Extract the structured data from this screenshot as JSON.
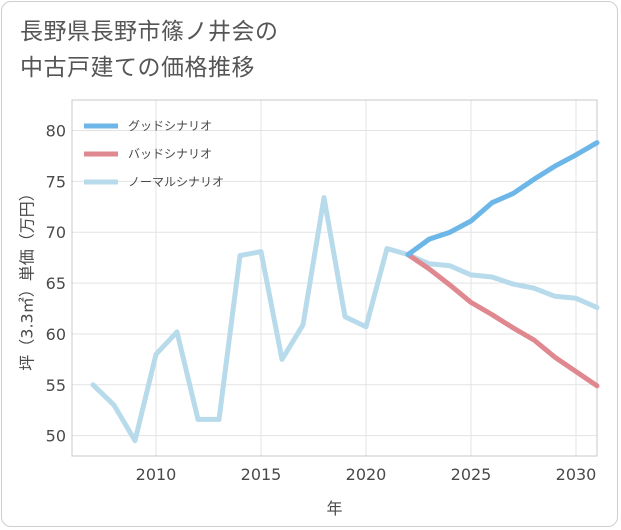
{
  "title": {
    "line1": "長野県長野市篠ノ井会の",
    "line2": "中古戸建ての価格推移"
  },
  "chart_data": {
    "type": "line",
    "xlabel": "年",
    "ylabel": "坪（3.3㎡）単価（万円）",
    "xlim": [
      2006,
      2031
    ],
    "ylim": [
      48,
      83
    ],
    "xticks": [
      2010,
      2015,
      2020,
      2025,
      2030
    ],
    "yticks": [
      50,
      55,
      60,
      65,
      70,
      75,
      80
    ],
    "grid": true,
    "legend_position": "top-left",
    "series": [
      {
        "name": "グッドシナリオ",
        "color": "#6cb6e8",
        "x": [
          2022,
          2023,
          2024,
          2025,
          2026,
          2027,
          2028,
          2029,
          2030,
          2031
        ],
        "y": [
          67.8,
          69.3,
          70.0,
          71.1,
          72.9,
          73.8,
          75.2,
          76.5,
          77.6,
          78.8
        ]
      },
      {
        "name": "バッドシナリオ",
        "color": "#e0888f",
        "x": [
          2022,
          2023,
          2024,
          2025,
          2026,
          2027,
          2028,
          2029,
          2030,
          2031
        ],
        "y": [
          67.8,
          66.4,
          64.8,
          63.1,
          61.9,
          60.6,
          59.4,
          57.7,
          56.3,
          54.9
        ]
      },
      {
        "name": "ノーマルシナリオ",
        "color": "#b8dbeb",
        "x": [
          2007,
          2008,
          2009,
          2010,
          2011,
          2012,
          2013,
          2014,
          2015,
          2016,
          2017,
          2018,
          2019,
          2020,
          2021,
          2022,
          2023,
          2024,
          2025,
          2026,
          2027,
          2028,
          2029,
          2030,
          2031
        ],
        "y": [
          55.0,
          53.0,
          49.5,
          58.0,
          60.2,
          51.6,
          51.6,
          67.7,
          68.1,
          57.5,
          60.9,
          73.4,
          61.7,
          60.7,
          68.4,
          67.8,
          66.9,
          66.7,
          65.8,
          65.6,
          64.9,
          64.5,
          63.7,
          63.5,
          62.6
        ]
      }
    ]
  }
}
